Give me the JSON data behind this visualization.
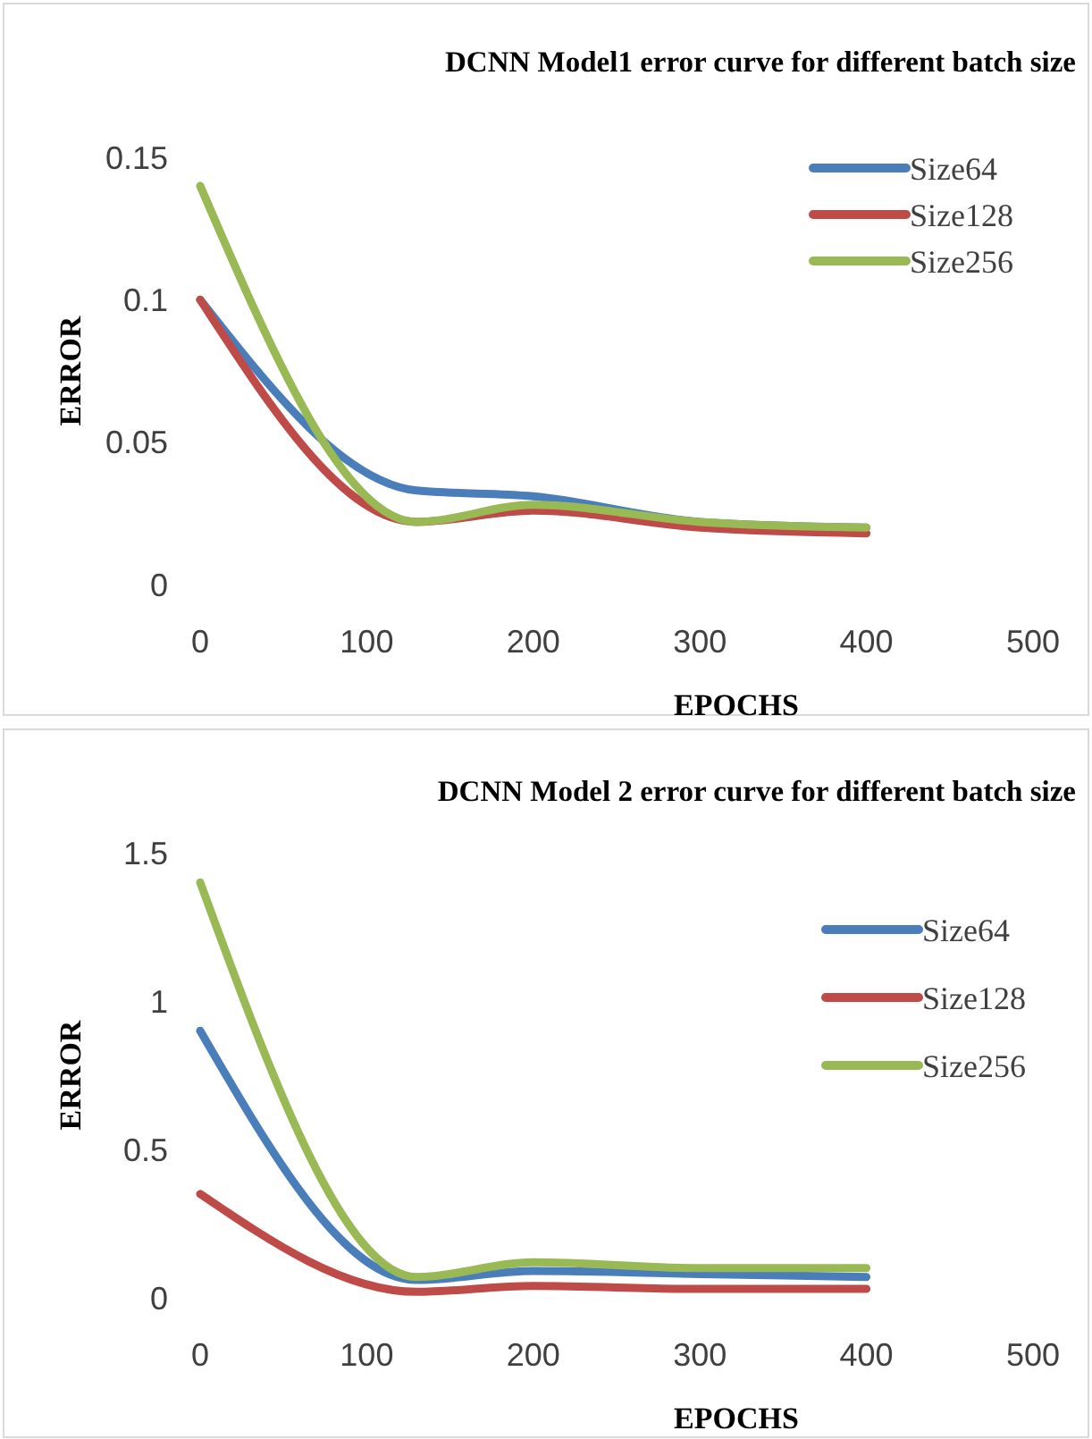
{
  "chart_data": [
    {
      "type": "line",
      "title": "DCNN Model1 error curve for different batch size",
      "xlabel": "EPOCHS",
      "ylabel": "ERROR",
      "x": [
        0,
        130,
        200,
        300,
        400
      ],
      "xlim": [
        0,
        500
      ],
      "xticks": [
        0,
        100,
        200,
        300,
        400,
        500
      ],
      "ylim": [
        0,
        0.15
      ],
      "yticks": [
        0,
        0.05,
        0.1,
        0.15
      ],
      "legend": "top right",
      "grid": false,
      "marker": "none",
      "line_style": "solid",
      "series": [
        {
          "name": "Size64",
          "color": "#4a7ebb",
          "values": [
            0.1,
            0.033,
            0.031,
            0.022,
            0.02
          ]
        },
        {
          "name": "Size128",
          "color": "#be4b48",
          "values": [
            0.1,
            0.022,
            0.026,
            0.02,
            0.018
          ]
        },
        {
          "name": "Size256",
          "color": "#98b954",
          "values": [
            0.14,
            0.022,
            0.028,
            0.022,
            0.02
          ]
        }
      ]
    },
    {
      "type": "line",
      "title": "DCNN Model 2 error curve for different batch size",
      "xlabel": "EPOCHS",
      "ylabel": "ERROR",
      "x": [
        0,
        130,
        200,
        300,
        400
      ],
      "xlim": [
        0,
        500
      ],
      "xticks": [
        0,
        100,
        200,
        300,
        400,
        500
      ],
      "ylim": [
        0,
        1.5
      ],
      "yticks": [
        0,
        0.5,
        1,
        1.5
      ],
      "legend": "top right",
      "grid": false,
      "marker": "none",
      "line_style": "solid",
      "series": [
        {
          "name": "Size64",
          "color": "#4a7ebb",
          "values": [
            0.9,
            0.06,
            0.09,
            0.08,
            0.07
          ]
        },
        {
          "name": "Size128",
          "color": "#be4b48",
          "values": [
            0.35,
            0.02,
            0.04,
            0.03,
            0.03
          ]
        },
        {
          "name": "Size256",
          "color": "#98b954",
          "values": [
            1.4,
            0.07,
            0.12,
            0.1,
            0.1
          ]
        }
      ]
    }
  ]
}
